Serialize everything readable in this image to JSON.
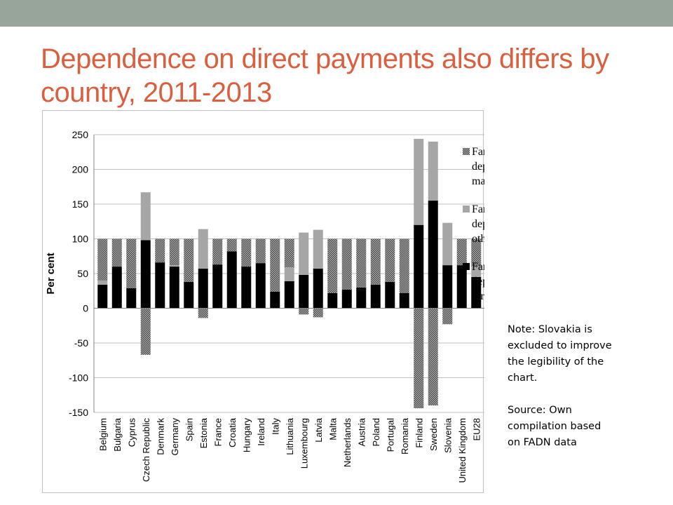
{
  "colors": {
    "top_band": "#98a59a",
    "title": "#d95f3f",
    "direct_aids": "#000000",
    "other_subsidies": "#a6a6a6",
    "market_factors": "#595959"
  },
  "slide": {
    "title_line1": "Dependence on direct payments also differs by",
    "title_line2": "country, 2011-2013"
  },
  "notes": {
    "note": "Note:  Slovakia is excluded to improve the legibility of the chart.",
    "source": "Source:  Own compilation based on FADN data"
  },
  "chart_data": {
    "type": "bar",
    "stacked": true,
    "ylabel": "Per cent",
    "ylim": [
      -150,
      250
    ],
    "yticks": [
      "250",
      "200",
      "150",
      "100",
      "50",
      "0",
      "-50",
      "-100",
      "-150"
    ],
    "ytick_values": [
      250,
      200,
      150,
      100,
      50,
      0,
      -50,
      -100,
      -150
    ],
    "grid": true,
    "legend_position": "right",
    "categories": [
      "Belgium",
      "Bulgaria",
      "Cyprus",
      "Czech Republic",
      "Denmark",
      "Germany",
      "Spain",
      "Estonia",
      "France",
      "Croatia",
      "Hungary",
      "Ireland",
      "Italy",
      "Lithuania",
      "Luxembourg",
      "Latvia",
      "Malta",
      "Netherlands",
      "Austria",
      "Poland",
      "Portugal",
      "Romania",
      "Finland",
      "Sweden",
      "Slovenia",
      "United Kingdom",
      "EU28"
    ],
    "series": [
      {
        "name": "Farm income depending on direct aids",
        "legend_lines": [
          "Farm income",
          "depending on",
          "direct aids"
        ],
        "color": "#000000",
        "values": [
          34,
          60,
          29,
          98,
          66,
          60,
          38,
          57,
          63,
          82,
          60,
          65,
          24,
          39,
          48,
          57,
          22,
          27,
          30,
          34,
          38,
          22,
          120,
          155,
          62,
          62,
          45
        ]
      },
      {
        "name": "Farm income depending on other subsidies",
        "legend_lines": [
          "Farm income",
          "depending on",
          "other subsidies"
        ],
        "color": "#a6a6a6",
        "values": [
          6,
          0,
          0,
          69,
          0,
          2,
          0,
          57,
          0,
          0,
          0,
          0,
          0,
          20,
          61,
          56,
          0,
          0,
          0,
          0,
          0,
          0,
          124,
          85,
          61,
          0,
          15
        ]
      },
      {
        "name": "Farm income depending on market factors",
        "legend_lines": [
          "Farm income",
          "depending on",
          "market factors"
        ],
        "color": "#595959",
        "values": [
          60,
          40,
          71,
          -67,
          34,
          38,
          62,
          -14,
          37,
          18,
          40,
          35,
          76,
          41,
          -9,
          -13,
          78,
          73,
          70,
          66,
          62,
          78,
          -144,
          -140,
          -23,
          38,
          40
        ]
      }
    ]
  }
}
